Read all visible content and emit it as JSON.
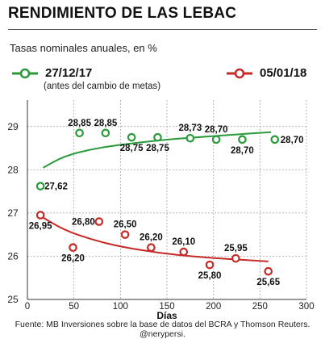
{
  "header": {
    "title": "RENDIMIENTO DE LAS LEBAC",
    "subtitle": "Tasas nominales anuales, en %"
  },
  "legend": {
    "series1": {
      "label": "27/12/17",
      "note": "(antes del cambio de metas)",
      "color": "#2a9a3a"
    },
    "series2": {
      "label": "05/01/18",
      "color": "#c62a27"
    }
  },
  "footer": {
    "source": "Fuente: MB Inversiones sobre la base de datos del BCRA y Thomson Reuters. @nerypersi."
  },
  "chart_data": {
    "type": "scatter",
    "title": "RENDIMIENTO DE LAS LEBAC",
    "subtitle": "Tasas nominales anuales, en %",
    "xlabel": "Días",
    "ylabel": "",
    "xlim": [
      0,
      300
    ],
    "ylim": [
      25,
      29.5
    ],
    "xticks": [
      0,
      50,
      100,
      150,
      200,
      250,
      300
    ],
    "yticks": [
      25,
      26,
      27,
      28,
      29
    ],
    "grid": true,
    "series": [
      {
        "name": "27/12/17",
        "color": "#2a9a3a",
        "points": [
          {
            "x": 14,
            "y": 27.62,
            "label": "27,62"
          },
          {
            "x": 56,
            "y": 28.85,
            "label": "28,85"
          },
          {
            "x": 84,
            "y": 28.85,
            "label": "28,85"
          },
          {
            "x": 112,
            "y": 28.75,
            "label": "28,75"
          },
          {
            "x": 140,
            "y": 28.75,
            "label": "28,75"
          },
          {
            "x": 175,
            "y": 28.73,
            "label": "28,73"
          },
          {
            "x": 203,
            "y": 28.7,
            "label": "28,70"
          },
          {
            "x": 231,
            "y": 28.7,
            "label": "28,70"
          },
          {
            "x": 266,
            "y": 28.7,
            "label": "28,70"
          }
        ],
        "trend": [
          [
            17,
            28.05
          ],
          [
            40,
            28.32
          ],
          [
            70,
            28.48
          ],
          [
            100,
            28.58
          ],
          [
            140,
            28.68
          ],
          [
            180,
            28.75
          ],
          [
            220,
            28.81
          ],
          [
            262,
            28.87
          ]
        ]
      },
      {
        "name": "05/01/18",
        "color": "#c62a27",
        "points": [
          {
            "x": 14,
            "y": 26.95,
            "label": "26,95"
          },
          {
            "x": 49,
            "y": 26.2,
            "label": "26,20"
          },
          {
            "x": 77,
            "y": 26.8,
            "label": "26,80"
          },
          {
            "x": 105,
            "y": 26.5,
            "label": "26,50"
          },
          {
            "x": 133,
            "y": 26.2,
            "label": "26,20"
          },
          {
            "x": 168,
            "y": 26.1,
            "label": "26,10"
          },
          {
            "x": 196,
            "y": 25.8,
            "label": "25,80"
          },
          {
            "x": 224,
            "y": 25.95,
            "label": "25,95"
          },
          {
            "x": 259,
            "y": 25.65,
            "label": "25,65"
          }
        ],
        "trend": [
          [
            14,
            26.93
          ],
          [
            40,
            26.6
          ],
          [
            70,
            26.38
          ],
          [
            100,
            26.22
          ],
          [
            140,
            26.08
          ],
          [
            180,
            25.99
          ],
          [
            220,
            25.93
          ],
          [
            259,
            25.88
          ]
        ]
      }
    ]
  }
}
